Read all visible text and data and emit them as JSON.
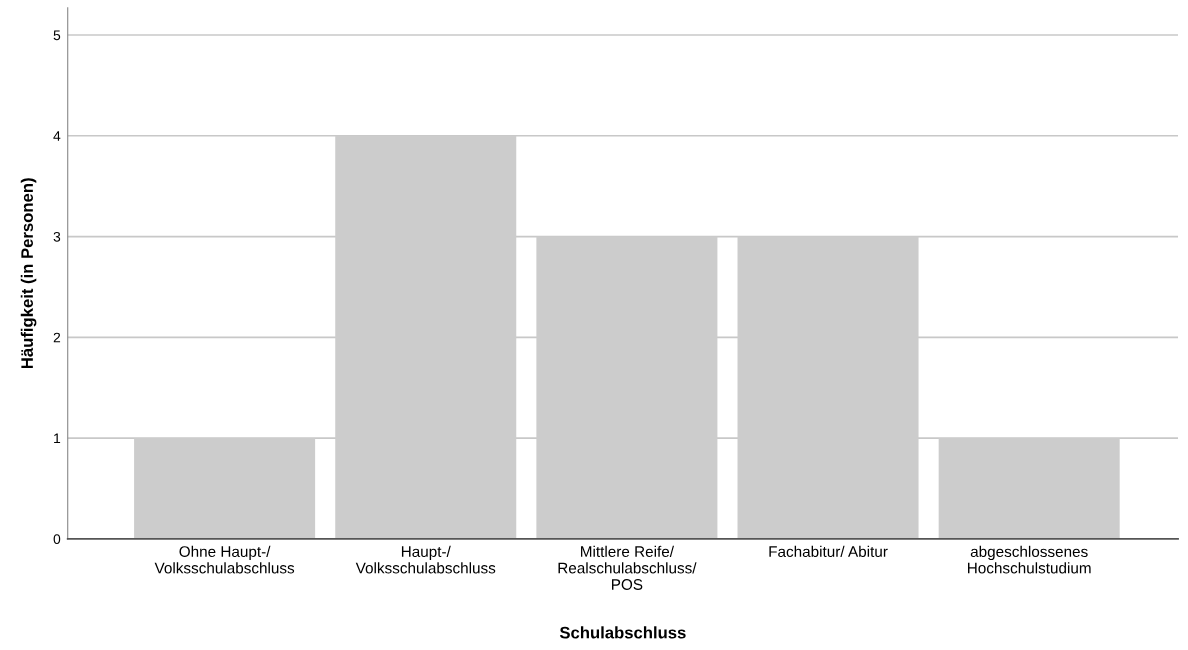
{
  "chart_data": {
    "type": "bar",
    "xlabel": "Schulabschluss",
    "ylabel": "Häufigkeit (in Personen)",
    "categories": [
      "Ohne Haupt-/\nVolksschulabschluss",
      "Haupt-/\nVolksschulabschluss",
      "Mittlere Reife/\nRealschulabschluss/\nPOS",
      "Fachabitur/ Abitur",
      "abgeschlossenes\nHochschulstudium"
    ],
    "values": [
      1,
      4,
      3,
      3,
      1
    ],
    "color": "#cccccc",
    "ylim": [
      0,
      5.27
    ],
    "yticks": [
      0,
      1,
      2,
      3,
      4,
      5
    ],
    "grid": "y"
  }
}
